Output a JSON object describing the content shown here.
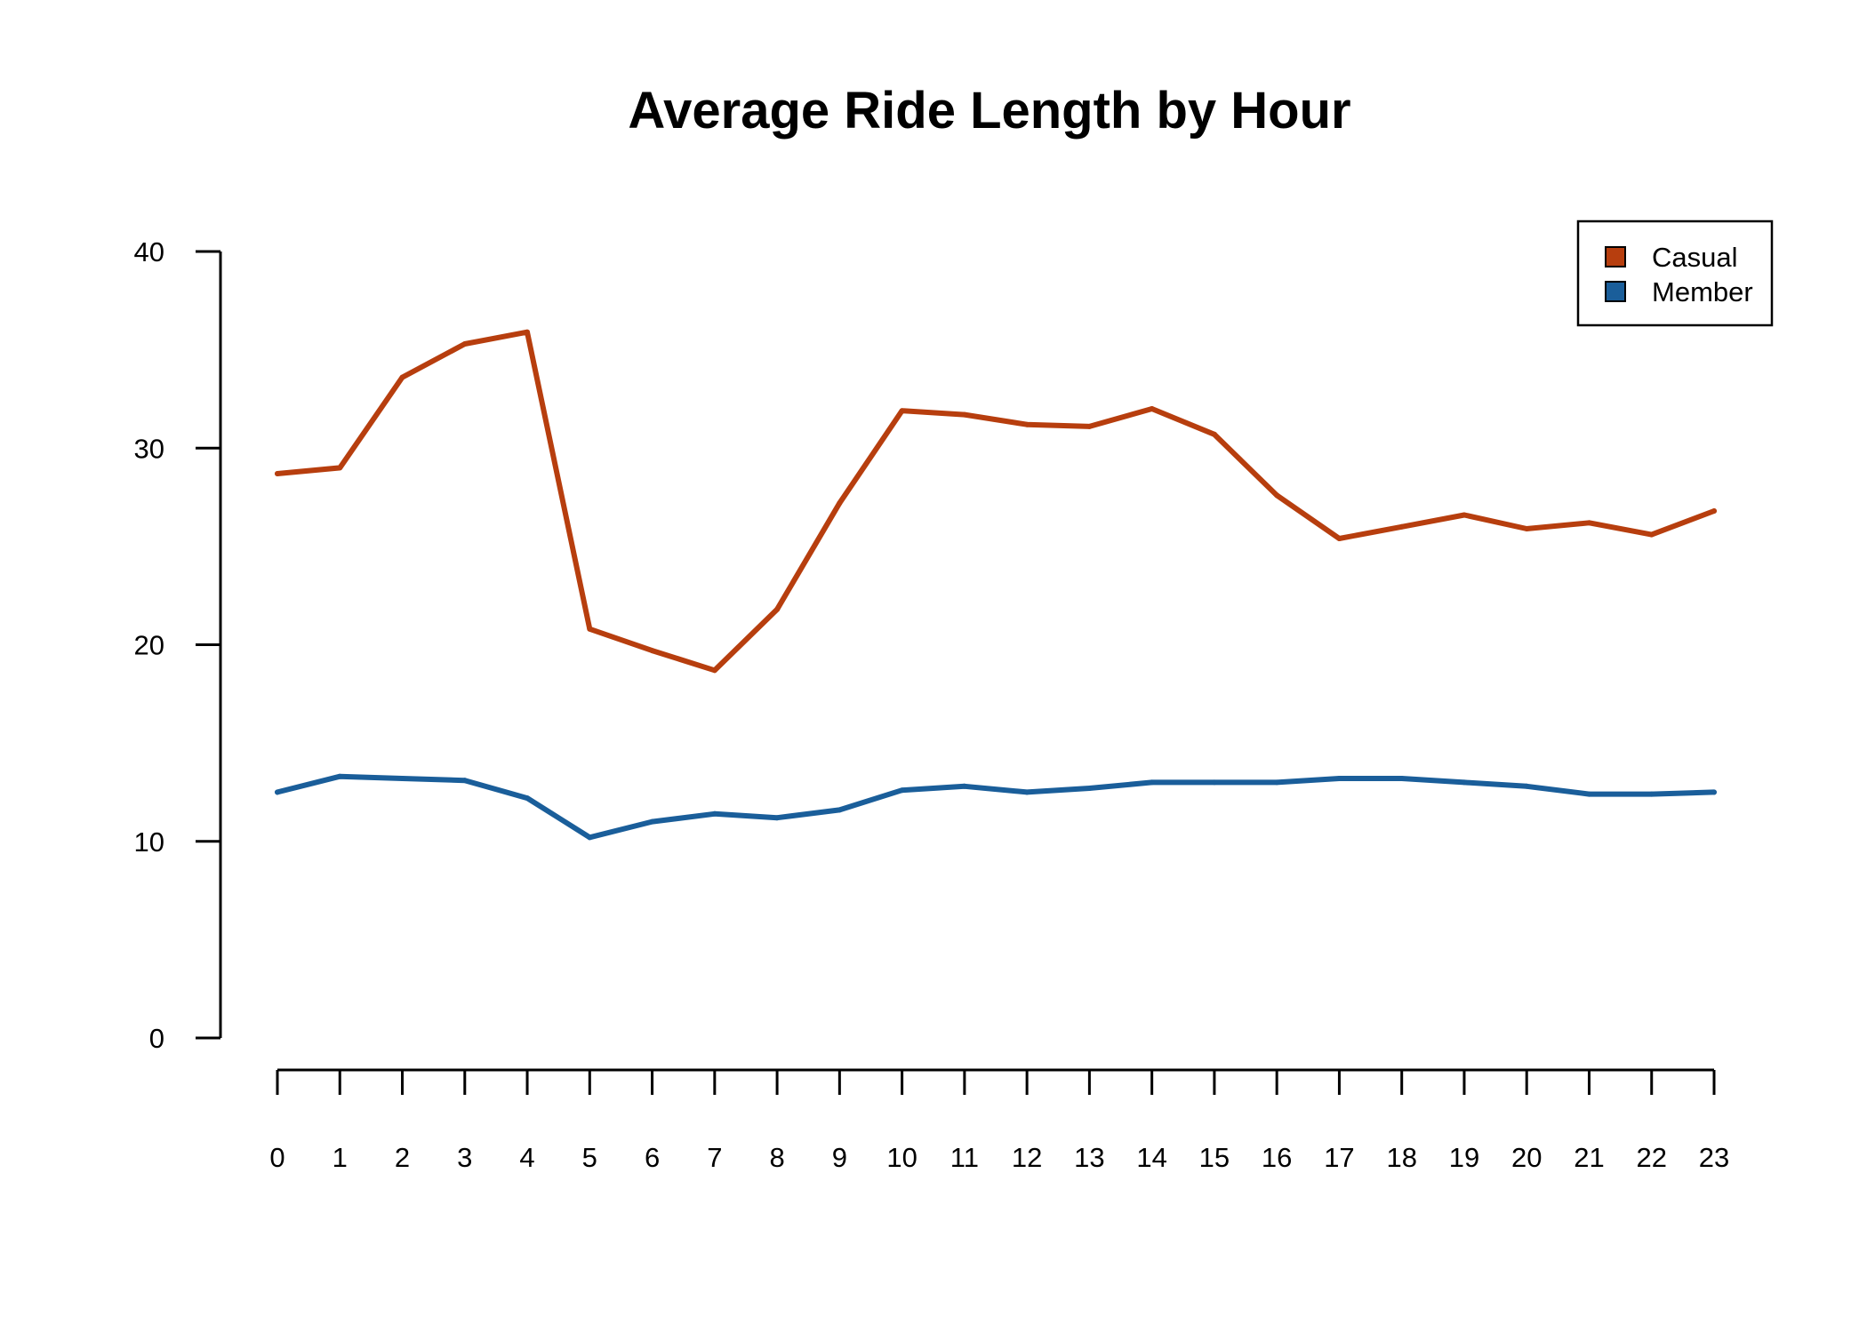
{
  "chart_data": {
    "type": "line",
    "title": "Average Ride Length by Hour",
    "xlabel": "",
    "ylabel": "",
    "x": [
      0,
      1,
      2,
      3,
      4,
      5,
      6,
      7,
      8,
      9,
      10,
      11,
      12,
      13,
      14,
      15,
      16,
      17,
      18,
      19,
      20,
      21,
      22,
      23
    ],
    "ylim": [
      0,
      40
    ],
    "y_ticks": [
      0,
      10,
      20,
      30,
      40
    ],
    "grid": false,
    "legend_position": "top-right",
    "series": [
      {
        "name": "Casual",
        "color": "#B73E0E",
        "values": [
          28.7,
          29.0,
          33.6,
          35.3,
          35.9,
          20.8,
          19.7,
          18.7,
          21.8,
          27.2,
          31.9,
          31.7,
          31.2,
          31.1,
          32.0,
          30.7,
          27.6,
          25.4,
          26.0,
          26.6,
          25.9,
          26.2,
          25.6,
          26.8
        ]
      },
      {
        "name": "Member",
        "color": "#1A5E9A",
        "values": [
          12.5,
          13.3,
          13.2,
          13.1,
          12.2,
          10.2,
          11.0,
          11.4,
          11.2,
          11.6,
          12.6,
          12.8,
          12.5,
          12.7,
          13.0,
          13.0,
          13.0,
          13.2,
          13.2,
          13.0,
          12.8,
          12.4,
          12.4,
          12.5
        ]
      }
    ]
  }
}
